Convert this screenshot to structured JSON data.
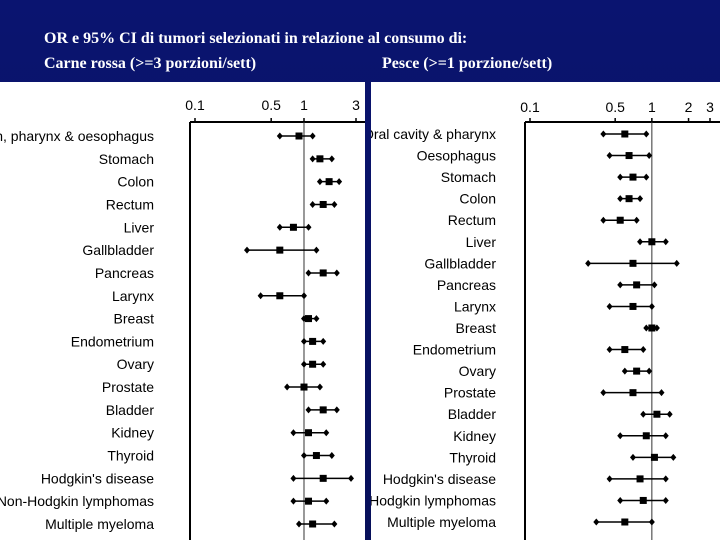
{
  "title": {
    "line1": "OR e 95% CI di tumori selezionati in relazione al consumo di:",
    "left_caption": "Carne rossa (>=3 porzioni/sett)",
    "right_caption": "Pesce (>=1 porzione/sett)"
  },
  "chart_data": [
    {
      "type": "forest",
      "title": "Carne rossa (>=3 porzioni/sett)",
      "xscale": "log",
      "xlim": [
        0.1,
        3
      ],
      "xticks": [
        "0.1",
        "0.5",
        "1",
        "3"
      ],
      "reference_line": 1,
      "categories": [
        "Mouth, pharynx & oesophagus",
        "Stomach",
        "Colon",
        "Rectum",
        "Liver",
        "Gallbladder",
        "Pancreas",
        "Larynx",
        "Breast",
        "Endometrium",
        "Ovary",
        "Prostate",
        "Bladder",
        "Kidney",
        "Thyroid",
        "Hodgkin's disease",
        "Non-Hodgkin lymphomas",
        "Multiple myeloma"
      ],
      "or": [
        0.9,
        1.4,
        1.7,
        1.5,
        0.8,
        0.6,
        1.5,
        0.6,
        1.1,
        1.2,
        1.2,
        1.0,
        1.5,
        1.1,
        1.3,
        1.5,
        1.1,
        1.2
      ],
      "lower": [
        0.6,
        1.2,
        1.4,
        1.2,
        0.6,
        0.3,
        1.1,
        0.4,
        1.0,
        1.0,
        1.0,
        0.7,
        1.1,
        0.8,
        1.0,
        0.8,
        0.8,
        0.9
      ],
      "upper": [
        1.2,
        1.8,
        2.1,
        1.9,
        1.1,
        1.3,
        2.0,
        1.0,
        1.3,
        1.5,
        1.5,
        1.4,
        2.0,
        1.6,
        1.8,
        2.7,
        1.6,
        1.9
      ]
    },
    {
      "type": "forest",
      "title": "Pesce (>=1 porzione/sett)",
      "xscale": "log",
      "xlim": [
        0.1,
        3
      ],
      "xticks": [
        "0.1",
        "0.5",
        "1",
        "2",
        "3"
      ],
      "reference_line": 1,
      "categories": [
        "Oral cavity & pharynx",
        "Oesophagus",
        "Stomach",
        "Colon",
        "Rectum",
        "Liver",
        "Gallbladder",
        "Pancreas",
        "Larynx",
        "Breast",
        "Endometrium",
        "Ovary",
        "Prostate",
        "Bladder",
        "Kidney",
        "Thyroid",
        "Hodgkin's disease",
        "Non-Hodgkin lymphomas",
        "Multiple myeloma"
      ],
      "or": [
        0.6,
        0.65,
        0.7,
        0.65,
        0.55,
        1.0,
        0.7,
        0.75,
        0.7,
        1.0,
        0.6,
        0.75,
        0.7,
        1.1,
        0.9,
        1.05,
        0.8,
        0.85,
        0.6
      ],
      "lower": [
        0.4,
        0.45,
        0.55,
        0.55,
        0.4,
        0.8,
        0.3,
        0.55,
        0.45,
        0.9,
        0.45,
        0.6,
        0.4,
        0.85,
        0.55,
        0.7,
        0.45,
        0.55,
        0.35
      ],
      "upper": [
        0.9,
        0.95,
        0.9,
        0.8,
        0.75,
        1.3,
        1.6,
        1.05,
        1.0,
        1.1,
        0.85,
        0.95,
        1.2,
        1.4,
        1.3,
        1.5,
        1.3,
        1.3,
        1.0
      ]
    }
  ]
}
